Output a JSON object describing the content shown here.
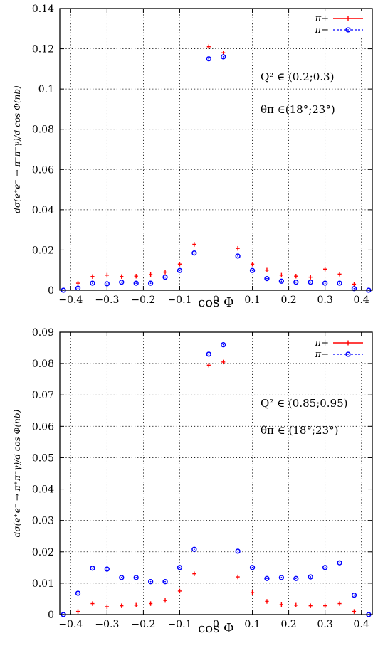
{
  "chart_data": [
    {
      "type": "scatter",
      "xlabel": "cos Φ",
      "ylabel": "dσ(e⁺e⁻ → π⁺π⁻γ)/d cos Φ(nb)",
      "xlim": [
        -0.43,
        0.43
      ],
      "ylim": [
        0,
        0.14
      ],
      "xticks": [
        "−0.4",
        "−0.3",
        "−0.2",
        "−0.1",
        "0",
        "0.1",
        "0.2",
        "0.3",
        "0.4"
      ],
      "yticks": [
        "0",
        "0.02",
        "0.04",
        "0.06",
        "0.08",
        "0.1",
        "0.12",
        "0.14"
      ],
      "grid": true,
      "legend_position": "top-right",
      "annotations": [
        "Q² ∈ (0.2;0.3)",
        "θπ ∈(18°;23°)"
      ],
      "series": [
        {
          "name": "π+",
          "color": "#ff0000",
          "marker": "cross-errorbar",
          "x": [
            -0.42,
            -0.38,
            -0.34,
            -0.3,
            -0.26,
            -0.22,
            -0.18,
            -0.14,
            -0.1,
            -0.06,
            -0.02,
            0.02,
            0.06,
            0.1,
            0.14,
            0.18,
            0.22,
            0.26,
            0.3,
            0.34,
            0.38,
            0.42
          ],
          "y": [
            0,
            0.0035,
            0.0068,
            0.0075,
            0.0068,
            0.007,
            0.0078,
            0.009,
            0.013,
            0.0228,
            0.121,
            0.118,
            0.0208,
            0.013,
            0.01,
            0.0075,
            0.007,
            0.0065,
            0.0105,
            0.008,
            0.003,
            0
          ]
        },
        {
          "name": "π−",
          "color": "#0000ff",
          "marker": "open-circle",
          "x": [
            -0.42,
            -0.38,
            -0.34,
            -0.3,
            -0.26,
            -0.22,
            -0.18,
            -0.14,
            -0.1,
            -0.06,
            -0.02,
            0.02,
            0.06,
            0.1,
            0.14,
            0.18,
            0.22,
            0.26,
            0.3,
            0.34,
            0.38,
            0.42
          ],
          "y": [
            0,
            0.001,
            0.0035,
            0.0032,
            0.004,
            0.0035,
            0.0035,
            0.0065,
            0.0098,
            0.0185,
            0.115,
            0.116,
            0.017,
            0.0098,
            0.0058,
            0.0045,
            0.004,
            0.004,
            0.0035,
            0.0035,
            0.0008,
            0
          ]
        }
      ]
    },
    {
      "type": "scatter",
      "xlabel": "cos Φ",
      "ylabel": "dσ(e⁺e⁻ → π⁺π⁻γ)/d cos Φ(nb)",
      "xlim": [
        -0.43,
        0.43
      ],
      "ylim": [
        0,
        0.09
      ],
      "xticks": [
        "−0.4",
        "−0.3",
        "−0.2",
        "−0.1",
        "0",
        "0.1",
        "0.2",
        "0.3",
        "0.4"
      ],
      "yticks": [
        "0",
        "0.01",
        "0.02",
        "0.03",
        "0.04",
        "0.05",
        "0.06",
        "0.07",
        "0.08",
        "0.09"
      ],
      "grid": true,
      "legend_position": "top-right",
      "annotations": [
        "Q² ∈ (0.85;0.95)",
        "θπ ∈ (18°;23°)"
      ],
      "series": [
        {
          "name": "π+",
          "color": "#ff0000",
          "marker": "cross-errorbar",
          "x": [
            -0.42,
            -0.38,
            -0.34,
            -0.3,
            -0.26,
            -0.22,
            -0.18,
            -0.14,
            -0.1,
            -0.06,
            -0.02,
            0.02,
            0.06,
            0.1,
            0.14,
            0.18,
            0.22,
            0.26,
            0.3,
            0.34,
            0.38,
            0.42
          ],
          "y": [
            0,
            0.001,
            0.0035,
            0.0025,
            0.0028,
            0.003,
            0.0035,
            0.0045,
            0.0075,
            0.013,
            0.0795,
            0.0805,
            0.012,
            0.007,
            0.0042,
            0.0032,
            0.003,
            0.0028,
            0.0028,
            0.0035,
            0.001,
            0
          ]
        },
        {
          "name": "π−",
          "color": "#0000ff",
          "marker": "open-circle",
          "x": [
            -0.42,
            -0.38,
            -0.34,
            -0.3,
            -0.26,
            -0.22,
            -0.18,
            -0.14,
            -0.1,
            -0.06,
            -0.02,
            0.02,
            0.06,
            0.1,
            0.14,
            0.18,
            0.22,
            0.26,
            0.3,
            0.34,
            0.38,
            0.42
          ],
          "y": [
            0,
            0.0068,
            0.0148,
            0.0145,
            0.0118,
            0.0118,
            0.0105,
            0.0105,
            0.015,
            0.0208,
            0.083,
            0.086,
            0.0202,
            0.015,
            0.0115,
            0.0118,
            0.0115,
            0.012,
            0.015,
            0.0165,
            0.0062,
            0
          ]
        }
      ]
    }
  ]
}
